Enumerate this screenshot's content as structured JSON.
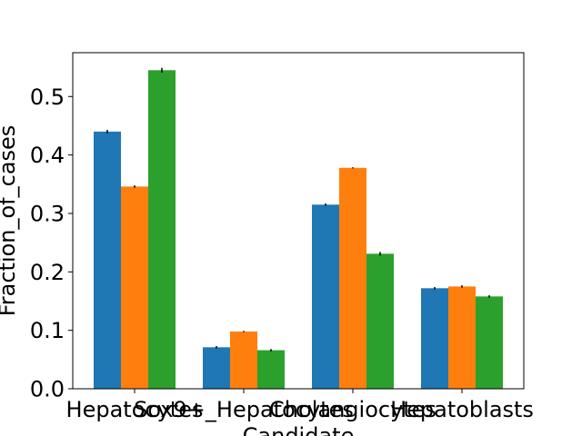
{
  "chart_data": {
    "type": "bar",
    "categories": [
      "Hepatocytes",
      "Sox9+_Hepatocytes",
      "Cholangiocytes",
      "Hepatoblasts"
    ],
    "xlabel": "Candidate",
    "ylabel": "Fraction_of_cases",
    "ylim": [
      0,
      0.575
    ],
    "yticks": [
      "0.0",
      "0.1",
      "0.2",
      "0.3",
      "0.4",
      "0.5"
    ],
    "series": [
      {
        "color": "#1f77b4",
        "values": [
          0.44,
          0.071,
          0.315,
          0.172
        ],
        "errors": [
          0.003,
          0.002,
          0.002,
          0.002
        ]
      },
      {
        "color": "#ff7f0e",
        "values": [
          0.346,
          0.098,
          0.378,
          0.175
        ],
        "errors": [
          0.002,
          0.001,
          0.001,
          0.002
        ]
      },
      {
        "color": "#2ca02c",
        "values": [
          0.545,
          0.066,
          0.231,
          0.158
        ],
        "errors": [
          0.004,
          0.002,
          0.003,
          0.002
        ]
      }
    ]
  }
}
